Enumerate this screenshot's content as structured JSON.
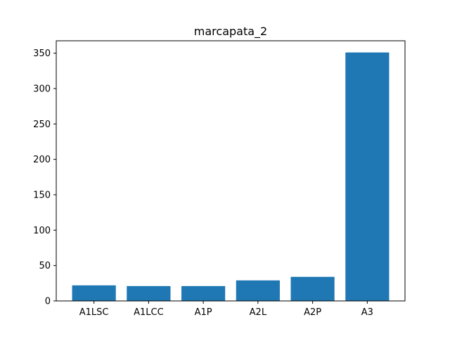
{
  "chart_data": {
    "type": "bar",
    "title": "marcapata_2",
    "xlabel": "",
    "ylabel": "",
    "categories": [
      "A1LSC",
      "A1LCC",
      "A1P",
      "A2L",
      "A2P",
      "A3"
    ],
    "values": [
      22,
      21,
      21,
      29,
      34,
      351
    ],
    "ylim": [
      0,
      367.5
    ],
    "yticks": [
      0,
      50,
      100,
      150,
      200,
      250,
      300,
      350
    ],
    "bar_color": "#1f77b4",
    "grid": false,
    "legend": "none"
  }
}
